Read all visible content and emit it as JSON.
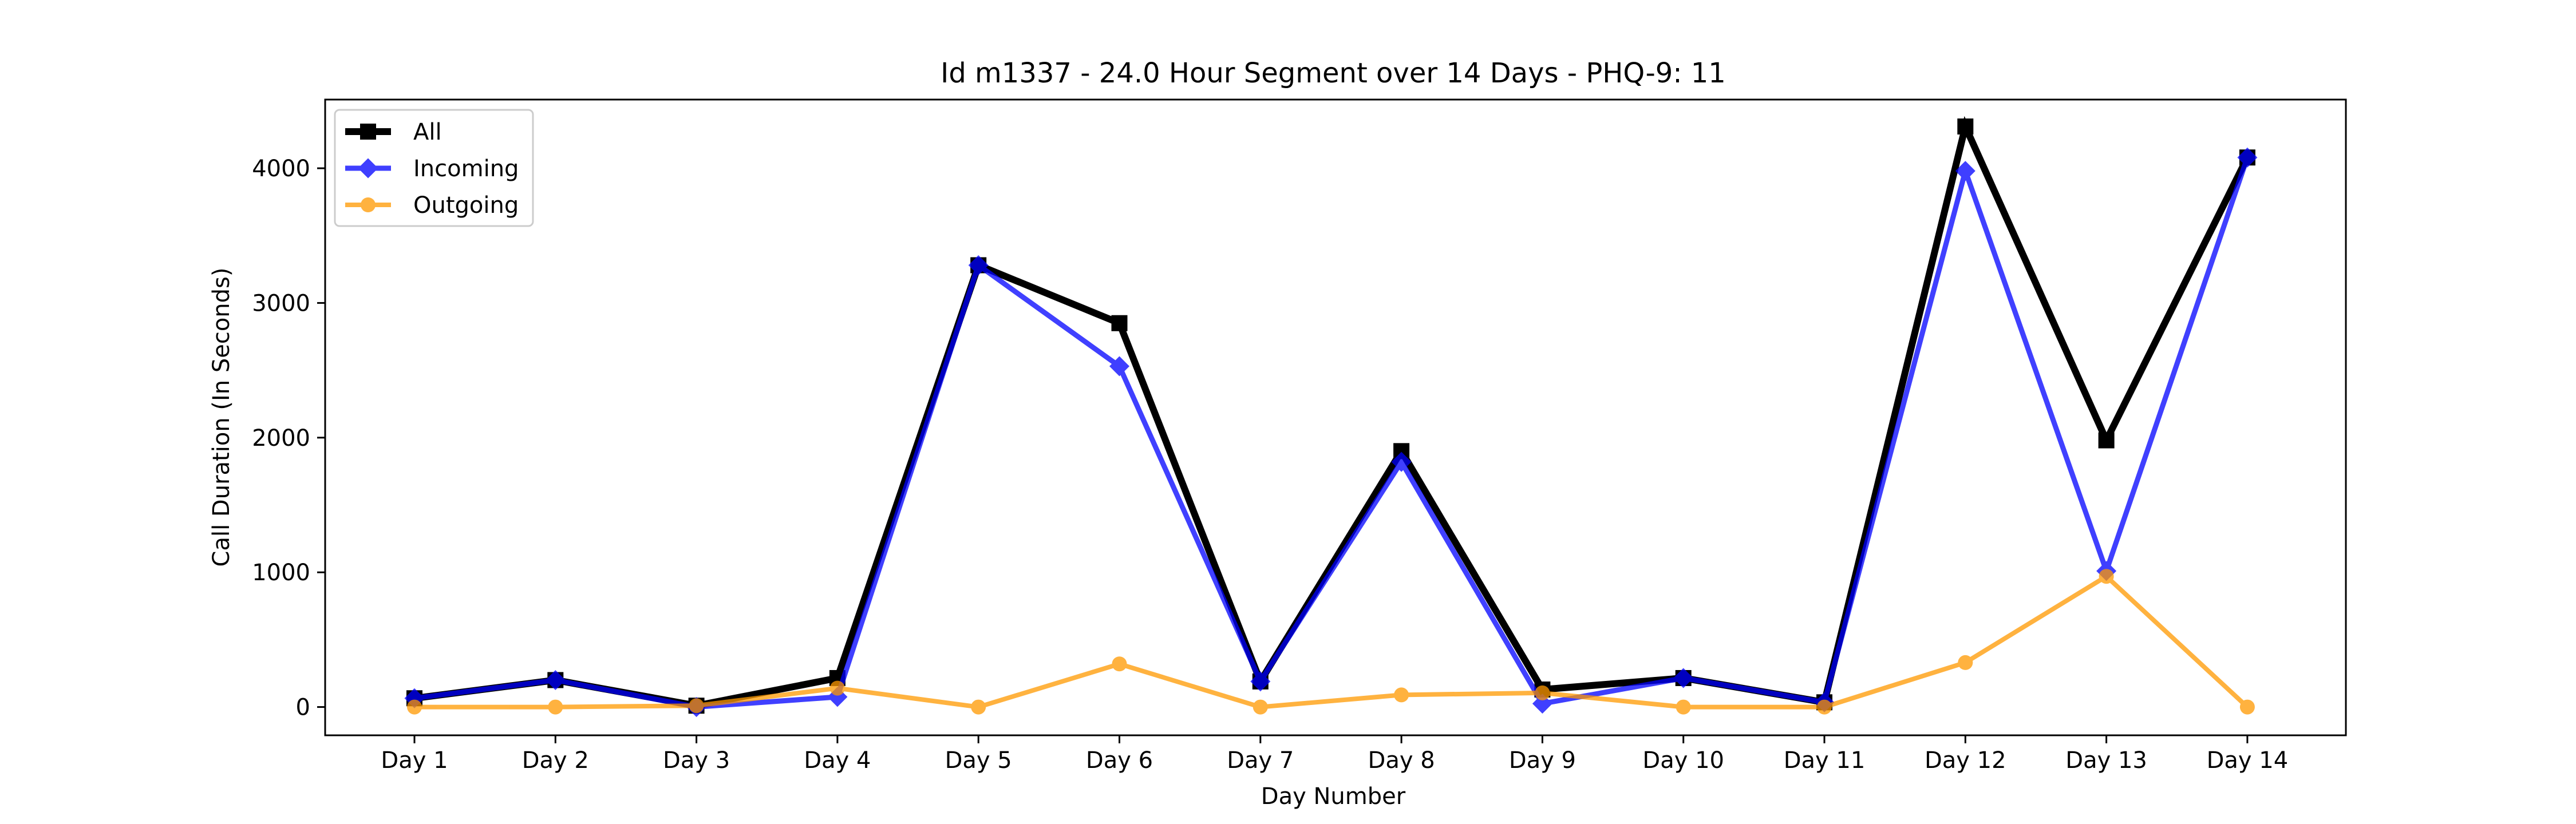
{
  "chart_data": {
    "type": "line",
    "title": "Id m1337 - 24.0 Hour Segment over 14 Days - PHQ-9: 11",
    "xlabel": "Day Number",
    "ylabel": "Call Duration (In Seconds)",
    "categories": [
      "Day 1",
      "Day 2",
      "Day 3",
      "Day 4",
      "Day 5",
      "Day 6",
      "Day 7",
      "Day 8",
      "Day 9",
      "Day 10",
      "Day 11",
      "Day 12",
      "Day 13",
      "Day 14"
    ],
    "ylim": [
      -210,
      4510
    ],
    "yticks": [
      0,
      1000,
      2000,
      3000,
      4000
    ],
    "grid": false,
    "legend_position": "top-left",
    "series": [
      {
        "name": "All",
        "color": "#000000",
        "marker": "square",
        "values": [
          65,
          200,
          10,
          215,
          3280,
          2850,
          190,
          1900,
          130,
          215,
          35,
          4310,
          1980,
          4080
        ]
      },
      {
        "name": "Incoming",
        "color": "#0000ff",
        "marker": "diamond",
        "values": [
          65,
          200,
          0,
          75,
          3280,
          2530,
          190,
          1820,
          25,
          215,
          35,
          3980,
          1010,
          4080
        ]
      },
      {
        "name": "Outgoing",
        "color": "#ff9900",
        "marker": "circle",
        "values": [
          0,
          0,
          10,
          140,
          0,
          320,
          0,
          90,
          105,
          0,
          0,
          330,
          970,
          0
        ]
      }
    ]
  }
}
